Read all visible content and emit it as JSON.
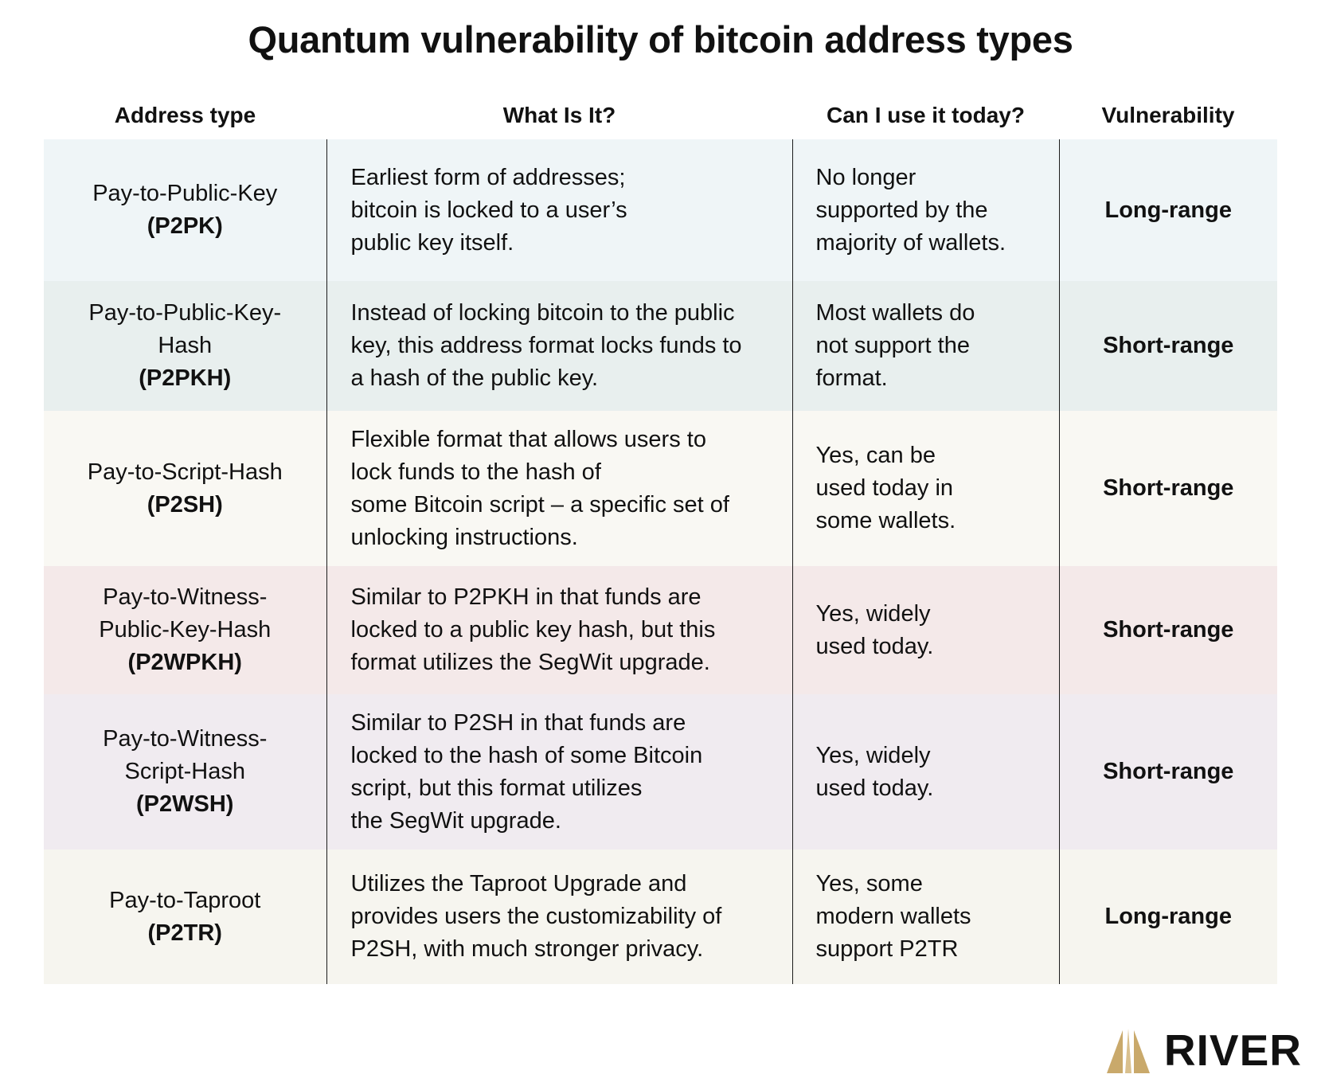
{
  "title": "Quantum vulnerability of bitcoin address types",
  "table": {
    "headers": [
      "Address type",
      "What Is It?",
      "Can I use it today?",
      "Vulnerability"
    ],
    "rows": [
      {
        "name": "Pay-to-Public-Key",
        "code": "(P2PK)",
        "what": "Earliest form of addresses;\nbitcoin is locked to a user’s\npublic key itself.",
        "use": "No longer\nsupported by the\nmajority of wallets.",
        "vulnerability": "Long-range",
        "bg": "#eff5f7"
      },
      {
        "name": "Pay-to-Public-Key-\nHash",
        "code": "(P2PKH)",
        "what": "Instead of locking bitcoin to the public\nkey, this address format locks funds to\na hash of the public key.",
        "use": "Most wallets do\nnot support the\nformat.",
        "vulnerability": "Short-range",
        "bg": "#e8efee"
      },
      {
        "name": "Pay-to-Script-Hash",
        "code": "(P2SH)",
        "what": "Flexible format that allows users to\nlock funds to the hash of\nsome Bitcoin script – a specific set of\nunlocking instructions.",
        "use": "Yes, can be\nused today in\nsome wallets.",
        "vulnerability": "Short-range",
        "bg": "#f9f8f3"
      },
      {
        "name": "Pay-to-Witness-\nPublic-Key-Hash",
        "code": "(P2WPKH)",
        "what": "Similar to P2PKH in that funds are\nlocked to a public key hash, but this\nformat utilizes the SegWit upgrade.",
        "use": "Yes, widely\nused today.",
        "vulnerability": "Short-range",
        "bg": "#f4e9e9"
      },
      {
        "name": "Pay-to-Witness-\nScript-Hash",
        "code": "(P2WSH)",
        "what": "Similar to P2SH in that funds are\nlocked to the hash of some Bitcoin\nscript, but this format utilizes\nthe SegWit upgrade.",
        "use": "Yes, widely\nused today.",
        "vulnerability": "Short-range",
        "bg": "#f0ebf0"
      },
      {
        "name": "Pay-to-Taproot",
        "code": "(P2TR)",
        "what": "Utilizes the Taproot Upgrade and\nprovides users the customizability of\nP2SH, with much stronger privacy.",
        "use": "Yes, some\nmodern wallets\nsupport P2TR",
        "vulnerability": "Long-range",
        "bg": "#f6f5ef"
      }
    ]
  },
  "logo": {
    "text": "RIVER",
    "icon": "river-mark-icon",
    "accent": "#c9a96b"
  }
}
